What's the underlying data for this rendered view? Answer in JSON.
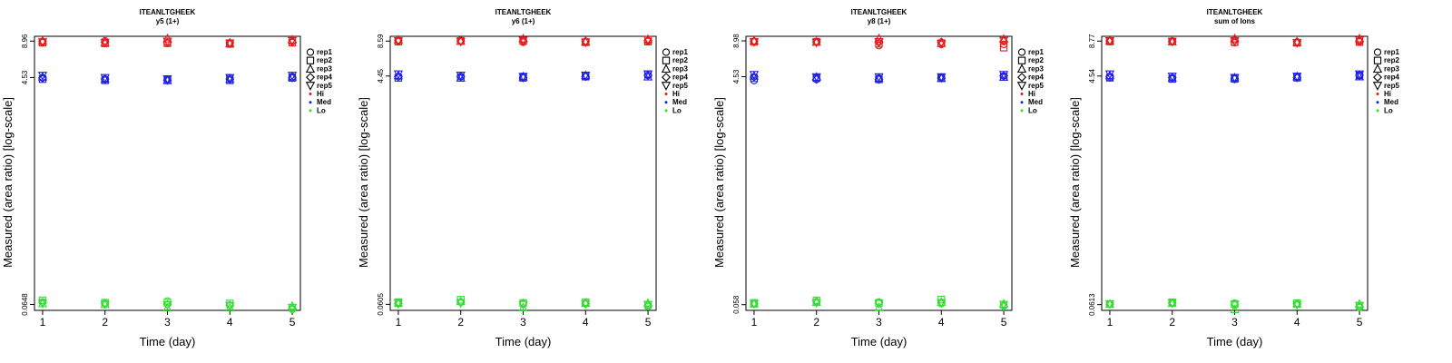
{
  "colors": {
    "Hi": "#e41a1c",
    "Med": "#1f1fe0",
    "Lo": "#33dd33"
  },
  "legend": {
    "shape_entries": [
      {
        "label": "rep1",
        "shape": "circle"
      },
      {
        "label": "rep2",
        "shape": "square"
      },
      {
        "label": "rep3",
        "shape": "triangle-up"
      },
      {
        "label": "rep4",
        "shape": "diamond"
      },
      {
        "label": "rep5",
        "shape": "triangle-down"
      }
    ],
    "color_entries": [
      {
        "label": "Hi",
        "key": "Hi"
      },
      {
        "label": "Med",
        "key": "Med"
      },
      {
        "label": "Lo",
        "key": "Lo"
      }
    ]
  },
  "chart_data": [
    {
      "type": "scatter",
      "title": "ITEANLTGHEEK",
      "subtitle": "y5 (1+)",
      "xlabel": "Time (day)",
      "ylabel": "Measured (area ratio) [log-scale]",
      "log_y": true,
      "x_ticks": [
        "1",
        "2",
        "3",
        "4",
        "5"
      ],
      "y_ticks": [
        "0.0648",
        "4.53",
        "8.96"
      ],
      "y_tick_values": [
        0.0648,
        4.53,
        8.96
      ],
      "ylim": [
        0.058,
        9.8
      ],
      "legend_position": "right",
      "series": [
        {
          "name": "Hi",
          "color_key": "Hi",
          "values": [
            [
              8.8,
              9.0,
              8.7,
              8.6,
              8.9
            ],
            [
              8.7,
              8.6,
              8.6,
              8.5,
              8.7
            ],
            [
              9.0,
              8.7,
              9.4,
              8.6,
              9.2
            ],
            [
              8.9,
              8.8,
              8.7,
              8.7,
              8.8
            ],
            [
              8.8,
              8.7,
              8.9,
              8.6,
              9.0
            ]
          ]
        },
        {
          "name": "Med",
          "color_key": "Med",
          "values": [
            [
              4.5,
              4.4,
              4.4,
              4.5,
              4.6
            ],
            [
              4.4,
              4.3,
              4.3,
              4.3,
              4.5
            ],
            [
              4.6,
              4.4,
              4.3,
              4.4,
              4.6
            ],
            [
              4.5,
              4.4,
              4.3,
              4.4,
              4.5
            ],
            [
              4.7,
              4.5,
              4.4,
              4.5,
              4.7
            ]
          ]
        },
        {
          "name": "Lo",
          "color_key": "Lo",
          "values": [
            [
              0.068,
              0.066,
              0.069,
              0.064,
              0.059
            ],
            [
              0.07,
              0.067,
              0.067,
              0.066,
              0.061
            ],
            [
              0.066,
              0.065,
              0.061,
              0.061,
              0.063
            ],
            [
              0.067,
              0.066,
              0.065,
              0.064,
              0.06
            ],
            [
              0.066,
              0.065,
              0.064,
              0.063,
              0.061
            ]
          ]
        }
      ]
    },
    {
      "type": "scatter",
      "title": "ITEANLTGHEEK",
      "subtitle": "y6 (1+)",
      "xlabel": "Time (day)",
      "ylabel": "Measured (area ratio) [log-scale]",
      "log_y": true,
      "x_ticks": [
        "1",
        "2",
        "3",
        "4",
        "5"
      ],
      "y_ticks": [
        "0.0605",
        "4.45",
        "8.59"
      ],
      "y_tick_values": [
        0.0605,
        4.45,
        8.59
      ],
      "ylim": [
        0.054,
        9.4
      ],
      "legend_position": "right",
      "series": [
        {
          "name": "Hi",
          "color_key": "Hi",
          "values": [
            [
              8.6,
              8.7,
              8.4,
              8.5,
              8.6
            ],
            [
              8.5,
              8.6,
              8.6,
              8.4,
              8.5
            ],
            [
              8.8,
              8.6,
              9.0,
              8.5,
              8.9
            ],
            [
              8.7,
              8.6,
              8.6,
              8.6,
              8.7
            ],
            [
              8.6,
              8.5,
              8.7,
              8.4,
              8.8
            ]
          ]
        },
        {
          "name": "Med",
          "color_key": "Med",
          "values": [
            [
              4.4,
              4.4,
              4.4,
              4.4,
              4.5
            ],
            [
              4.3,
              4.3,
              4.3,
              4.4,
              4.6
            ],
            [
              4.5,
              4.3,
              4.4,
              4.5,
              4.4
            ],
            [
              4.4,
              4.4,
              4.3,
              4.4,
              4.5
            ],
            [
              4.6,
              4.5,
              4.4,
              4.5,
              4.6
            ]
          ]
        },
        {
          "name": "Lo",
          "color_key": "Lo",
          "values": [
            [
              0.062,
              0.063,
              0.061,
              0.062,
              0.058
            ],
            [
              0.063,
              0.066,
              0.062,
              0.063,
              0.06
            ],
            [
              0.062,
              0.064,
              0.057,
              0.062,
              0.062
            ],
            [
              0.061,
              0.063,
              0.062,
              0.061,
              0.059
            ],
            [
              0.062,
              0.062,
              0.06,
              0.061,
              0.06
            ]
          ]
        }
      ]
    },
    {
      "type": "scatter",
      "title": "ITEANLTGHEEK",
      "subtitle": "y8 (1+)",
      "xlabel": "Time (day)",
      "ylabel": "Measured (area ratio) [log-scale]",
      "log_y": true,
      "x_ticks": [
        "1",
        "2",
        "3",
        "4",
        "5"
      ],
      "y_ticks": [
        "0.058",
        "4.53",
        "8.98"
      ],
      "y_tick_values": [
        0.058,
        4.53,
        8.98
      ],
      "ylim": [
        0.052,
        9.8
      ],
      "legend_position": "right",
      "series": [
        {
          "name": "Hi",
          "color_key": "Hi",
          "values": [
            [
              8.9,
              8.9,
              8.2,
              8.4,
              8.4
            ],
            [
              8.8,
              8.8,
              8.5,
              8.6,
              7.9
            ],
            [
              9.0,
              8.8,
              9.4,
              8.6,
              9.3
            ],
            [
              8.9,
              8.8,
              8.7,
              8.8,
              8.9
            ],
            [
              8.8,
              8.7,
              8.8,
              8.5,
              9.0
            ]
          ]
        },
        {
          "name": "Med",
          "color_key": "Med",
          "values": [
            [
              4.2,
              4.3,
              4.4,
              4.5,
              4.6
            ],
            [
              4.4,
              4.4,
              4.3,
              4.4,
              4.5
            ],
            [
              4.6,
              4.5,
              4.4,
              4.4,
              4.5
            ],
            [
              4.5,
              4.3,
              4.3,
              4.4,
              4.6
            ],
            [
              4.7,
              4.5,
              4.5,
              4.5,
              4.7
            ]
          ]
        },
        {
          "name": "Lo",
          "color_key": "Lo",
          "values": [
            [
              0.059,
              0.061,
              0.061,
              0.059,
              0.057
            ],
            [
              0.06,
              0.063,
              0.06,
              0.064,
              0.058
            ],
            [
              0.059,
              0.061,
              0.055,
              0.061,
              0.059
            ],
            [
              0.059,
              0.062,
              0.06,
              0.061,
              0.056
            ],
            [
              0.059,
              0.06,
              0.059,
              0.06,
              0.058
            ]
          ]
        }
      ]
    },
    {
      "type": "scatter",
      "title": "ITEANLTGHEEK",
      "subtitle": "sum of Ions",
      "xlabel": "Time (day)",
      "ylabel": "Measured (area ratio) [log-scale]",
      "log_y": true,
      "x_ticks": [
        "1",
        "2",
        "3",
        "4",
        "5"
      ],
      "y_ticks": [
        "0.0613",
        "4.54",
        "8.77"
      ],
      "y_tick_values": [
        0.0613,
        4.54,
        8.77
      ],
      "ylim": [
        0.055,
        9.6
      ],
      "legend_position": "right",
      "series": [
        {
          "name": "Hi",
          "color_key": "Hi",
          "values": [
            [
              8.8,
              8.8,
              8.5,
              8.5,
              8.7
            ],
            [
              8.7,
              8.7,
              8.6,
              8.5,
              8.6
            ],
            [
              8.9,
              8.7,
              9.2,
              8.6,
              9.2
            ],
            [
              8.8,
              8.7,
              8.8,
              8.7,
              8.8
            ],
            [
              8.8,
              8.7,
              8.8,
              8.5,
              8.9
            ]
          ]
        },
        {
          "name": "Med",
          "color_key": "Med",
          "values": [
            [
              4.4,
              4.4,
              4.4,
              4.5,
              4.6
            ],
            [
              4.4,
              4.3,
              4.3,
              4.4,
              4.6
            ],
            [
              4.6,
              4.4,
              4.4,
              4.5,
              4.5
            ],
            [
              4.5,
              4.4,
              4.3,
              4.4,
              4.6
            ],
            [
              4.7,
              4.5,
              4.4,
              4.5,
              4.7
            ]
          ]
        },
        {
          "name": "Lo",
          "color_key": "Lo",
          "values": [
            [
              0.062,
              0.063,
              0.063,
              0.062,
              0.058
            ],
            [
              0.062,
              0.064,
              0.062,
              0.063,
              0.06
            ],
            [
              0.062,
              0.063,
              0.056,
              0.062,
              0.062
            ],
            [
              0.062,
              0.063,
              0.061,
              0.062,
              0.059
            ],
            [
              0.062,
              0.063,
              0.061,
              0.061,
              0.06
            ]
          ]
        }
      ]
    }
  ]
}
